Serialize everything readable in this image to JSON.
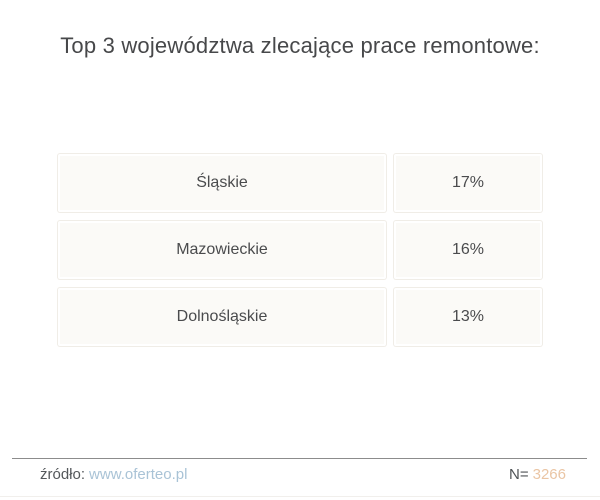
{
  "title": "Top 3 województwa zlecające prace remontowe:",
  "chart_data": {
    "type": "table",
    "title": "Top 3 województwa zlecające prace remontowe:",
    "categories": [
      "Śląskie",
      "Mazowieckie",
      "Dolnośląskie"
    ],
    "values": [
      17,
      16,
      13
    ],
    "value_unit": "%",
    "sample_size": 3266
  },
  "rows": [
    {
      "label": "Śląskie",
      "value": "17%"
    },
    {
      "label": "Mazowieckie",
      "value": "16%"
    },
    {
      "label": "Dolnośląskie",
      "value": "13%"
    }
  ],
  "footer": {
    "source_label": "źródło:",
    "source_link": "www.oferteo.pl",
    "n_label": "N=",
    "n_value": "3266"
  },
  "colors": {
    "link": "#a9c3d6",
    "n_value": "#eac5a4",
    "row_fill": "#fbfaf7",
    "title_text": "#47484a",
    "divider": "#8c8c8c"
  }
}
